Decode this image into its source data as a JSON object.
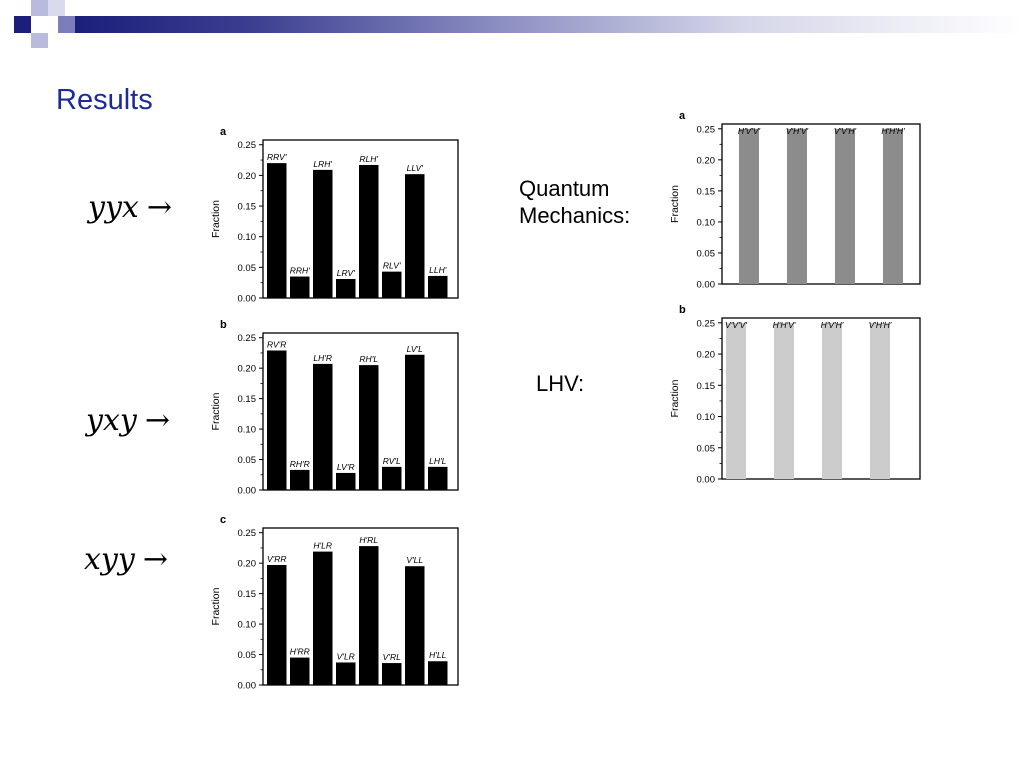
{
  "slide": {
    "title": "Results",
    "formulas": [
      {
        "text": "yyx",
        "arrow": "→"
      },
      {
        "text": "yxy",
        "arrow": "→"
      },
      {
        "text": "xyy",
        "arrow": "→"
      }
    ],
    "labels": {
      "quantum_line1": "Quantum",
      "quantum_line2": "Mechanics:",
      "lhv": "LHV:"
    }
  },
  "colors": {
    "title": "#1f2a9a",
    "bar_measured": "#000000",
    "bar_quantum": "#8c8c8c",
    "bar_lhv": "#cccccc"
  },
  "chart_data": [
    {
      "panel": "a",
      "type": "bar",
      "ylabel": "Fraction",
      "ylim": [
        0,
        0.25
      ],
      "yticks": [
        "0.00",
        "0.05",
        "0.10",
        "0.15",
        "0.20",
        "0.25"
      ],
      "categories": [
        "RRV'",
        "RRH'",
        "LRH'",
        "LRV'",
        "RLH'",
        "RLV'",
        "LLV'",
        "LLH'"
      ],
      "values": [
        0.22,
        0.035,
        0.209,
        0.031,
        0.217,
        0.043,
        0.202,
        0.036
      ]
    },
    {
      "panel": "b",
      "type": "bar",
      "ylabel": "Fraction",
      "ylim": [
        0,
        0.25
      ],
      "yticks": [
        "0.00",
        "0.05",
        "0.10",
        "0.15",
        "0.20",
        "0.25"
      ],
      "categories": [
        "RV'R",
        "RH'R",
        "LH'R",
        "LV'R",
        "RH'L",
        "RV'L",
        "LV'L",
        "LH'L"
      ],
      "values": [
        0.229,
        0.033,
        0.207,
        0.028,
        0.205,
        0.038,
        0.222,
        0.038
      ]
    },
    {
      "panel": "c",
      "type": "bar",
      "ylabel": "Fraction",
      "ylim": [
        0,
        0.25
      ],
      "yticks": [
        "0.00",
        "0.05",
        "0.10",
        "0.15",
        "0.20",
        "0.25"
      ],
      "categories": [
        "V'RR",
        "H'RR",
        "H'LR",
        "V'LR",
        "H'RL",
        "V'RL",
        "V'LL",
        "H'LL"
      ],
      "values": [
        0.197,
        0.045,
        0.219,
        0.037,
        0.228,
        0.036,
        0.195,
        0.039
      ]
    },
    {
      "panel": "a",
      "type": "bar",
      "ylabel": "Fraction",
      "ylim": [
        0,
        0.25
      ],
      "yticks": [
        "0.00",
        "0.05",
        "0.10",
        "0.15",
        "0.20",
        "0.25"
      ],
      "categories": [
        "H'V'V'",
        "V'H'V'",
        "V'V'H'",
        "H'H'H'"
      ],
      "values": [
        0.25,
        0.25,
        0.25,
        0.25
      ]
    },
    {
      "panel": "b",
      "type": "bar",
      "ylabel": "Fraction",
      "ylim": [
        0,
        0.25
      ],
      "yticks": [
        "0.00",
        "0.05",
        "0.10",
        "0.15",
        "0.20",
        "0.25"
      ],
      "categories": [
        "V'V'V'",
        "H'H'V'",
        "H'V'H'",
        "V'H'H'"
      ],
      "values": [
        0.25,
        0.25,
        0.25,
        0.25
      ]
    }
  ]
}
